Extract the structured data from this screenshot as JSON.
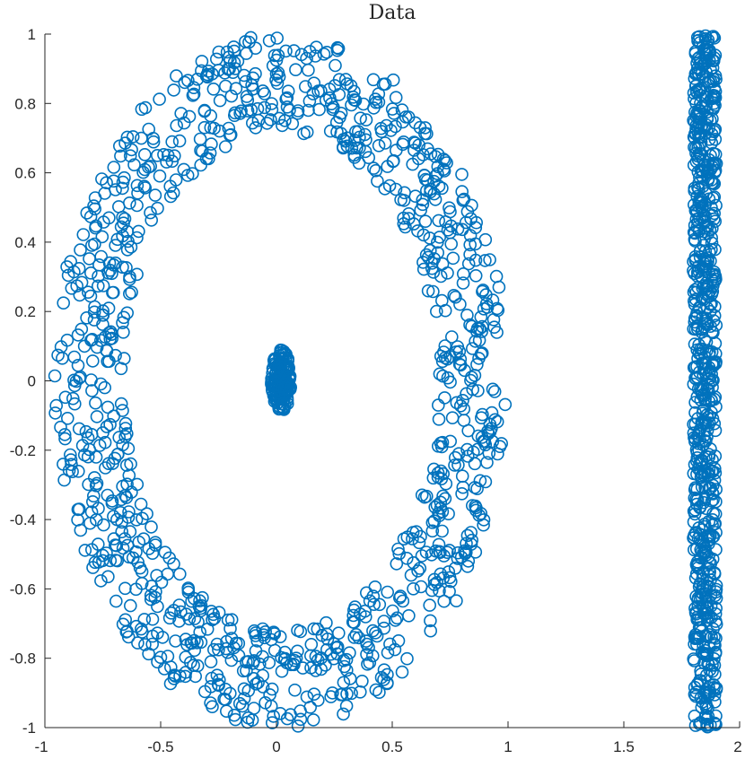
{
  "chart_data": {
    "type": "scatter",
    "title": "Data",
    "xlabel": "",
    "ylabel": "",
    "xlim": [
      -1,
      2
    ],
    "ylim": [
      -1,
      1
    ],
    "xticks": [
      -1,
      -0.5,
      0,
      0.5,
      1,
      1.5,
      2
    ],
    "xtick_labels": [
      "-1",
      "-0.5",
      "0",
      "0.5",
      "1",
      "1.5",
      "2"
    ],
    "yticks": [
      -1,
      -0.8,
      -0.6,
      -0.4,
      -0.2,
      0,
      0.2,
      0.4,
      0.6,
      0.8,
      1
    ],
    "ytick_labels": [
      "-1",
      "-0.8",
      "-0.6",
      "-0.4",
      "-0.2",
      "0",
      "0.2",
      "0.4",
      "0.6",
      "0.8",
      "1"
    ],
    "grid": false,
    "box": "left-bottom axes only",
    "marker": "open circle",
    "color": "#0072BD",
    "series": [
      {
        "structure": "ellipse ring",
        "center": [
          0.02,
          0
        ],
        "x_radius_outer": 0.98,
        "x_radius_inner": 0.68,
        "y_radius_outer": 1.0,
        "y_radius_inner": 0.72,
        "n_points": 1100
      },
      {
        "structure": "central cluster",
        "center": [
          0.02,
          0
        ],
        "x_extent": [
          -0.05,
          0.07
        ],
        "y_extent": [
          -0.09,
          0.09
        ],
        "n_points": 150
      },
      {
        "structure": "vertical band",
        "x_range": [
          1.8,
          1.9
        ],
        "y_range": [
          -1,
          1
        ],
        "n_points": 700
      }
    ]
  }
}
